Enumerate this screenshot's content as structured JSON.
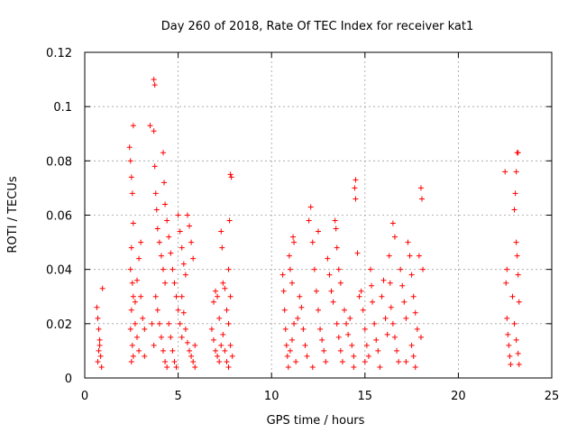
{
  "chart_data": {
    "type": "scatter",
    "title": "Day 260 of 2018, Rate Of TEC Index for receiver kat1",
    "xlabel": "GPS time / hours",
    "ylabel": "ROTI / TECUs",
    "xlim": [
      0,
      25
    ],
    "ylim": [
      0,
      0.12
    ],
    "xticks": [
      0,
      5,
      10,
      15,
      20,
      25
    ],
    "xtick_labels": [
      "0",
      "5",
      "10",
      "15",
      "20",
      "25"
    ],
    "yticks": [
      0,
      0.02,
      0.04,
      0.06,
      0.08,
      0.1,
      0.12
    ],
    "ytick_labels": [
      "0",
      "0.02",
      "0.04",
      "0.06",
      "0.08",
      "0.1",
      "0.12"
    ],
    "grid": true,
    "marker": "plus",
    "color": "#ff0000",
    "series": [
      {
        "name": "ROTI",
        "points": [
          [
            0.65,
            0.026
          ],
          [
            0.7,
            0.022
          ],
          [
            0.75,
            0.018
          ],
          [
            0.8,
            0.012
          ],
          [
            0.85,
            0.008
          ],
          [
            0.9,
            0.004
          ],
          [
            0.7,
            0.006
          ],
          [
            0.8,
            0.014
          ],
          [
            0.75,
            0.01
          ],
          [
            0.95,
            0.033
          ],
          [
            2.4,
            0.085
          ],
          [
            2.45,
            0.08
          ],
          [
            2.5,
            0.074
          ],
          [
            2.55,
            0.068
          ],
          [
            2.6,
            0.057
          ],
          [
            2.5,
            0.048
          ],
          [
            2.45,
            0.04
          ],
          [
            2.55,
            0.035
          ],
          [
            2.6,
            0.03
          ],
          [
            2.5,
            0.025
          ],
          [
            2.45,
            0.018
          ],
          [
            2.55,
            0.012
          ],
          [
            2.6,
            0.008
          ],
          [
            2.5,
            0.006
          ],
          [
            2.6,
            0.093
          ],
          [
            2.7,
            0.02
          ],
          [
            2.8,
            0.015
          ],
          [
            2.9,
            0.01
          ],
          [
            2.7,
            0.028
          ],
          [
            2.8,
            0.036
          ],
          [
            2.9,
            0.044
          ],
          [
            3.0,
            0.05
          ],
          [
            3.1,
            0.022
          ],
          [
            3.2,
            0.018
          ],
          [
            3.0,
            0.03
          ],
          [
            3.2,
            0.008
          ],
          [
            3.5,
            0.093
          ],
          [
            3.7,
            0.11
          ],
          [
            3.75,
            0.108
          ],
          [
            3.7,
            0.091
          ],
          [
            3.75,
            0.078
          ],
          [
            3.8,
            0.068
          ],
          [
            3.85,
            0.062
          ],
          [
            3.9,
            0.055
          ],
          [
            4.0,
            0.05
          ],
          [
            4.1,
            0.045
          ],
          [
            4.2,
            0.04
          ],
          [
            4.3,
            0.035
          ],
          [
            3.8,
            0.03
          ],
          [
            3.9,
            0.025
          ],
          [
            4.0,
            0.02
          ],
          [
            4.1,
            0.015
          ],
          [
            4.2,
            0.01
          ],
          [
            4.3,
            0.006
          ],
          [
            4.4,
            0.004
          ],
          [
            3.6,
            0.02
          ],
          [
            3.7,
            0.012
          ],
          [
            4.2,
            0.083
          ],
          [
            4.25,
            0.072
          ],
          [
            4.3,
            0.064
          ],
          [
            4.4,
            0.058
          ],
          [
            4.5,
            0.052
          ],
          [
            4.6,
            0.046
          ],
          [
            4.7,
            0.04
          ],
          [
            4.8,
            0.035
          ],
          [
            4.9,
            0.03
          ],
          [
            5.0,
            0.025
          ],
          [
            4.5,
            0.02
          ],
          [
            4.6,
            0.015
          ],
          [
            4.7,
            0.01
          ],
          [
            4.8,
            0.006
          ],
          [
            4.9,
            0.004
          ],
          [
            5.0,
            0.06
          ],
          [
            5.1,
            0.054
          ],
          [
            5.2,
            0.048
          ],
          [
            5.3,
            0.042
          ],
          [
            5.4,
            0.038
          ],
          [
            5.5,
            0.06
          ],
          [
            5.6,
            0.056
          ],
          [
            5.7,
            0.05
          ],
          [
            5.8,
            0.044
          ],
          [
            5.2,
            0.03
          ],
          [
            5.3,
            0.024
          ],
          [
            5.4,
            0.018
          ],
          [
            5.5,
            0.013
          ],
          [
            5.6,
            0.01
          ],
          [
            5.7,
            0.008
          ],
          [
            5.8,
            0.006
          ],
          [
            5.9,
            0.012
          ],
          [
            5.1,
            0.02
          ],
          [
            5.2,
            0.015
          ],
          [
            5.9,
            0.004
          ],
          [
            6.8,
            0.018
          ],
          [
            6.9,
            0.014
          ],
          [
            7.0,
            0.01
          ],
          [
            7.1,
            0.008
          ],
          [
            7.2,
            0.006
          ],
          [
            7.3,
            0.012
          ],
          [
            6.9,
            0.028
          ],
          [
            7.0,
            0.032
          ],
          [
            7.1,
            0.03
          ],
          [
            7.2,
            0.022
          ],
          [
            7.3,
            0.054
          ],
          [
            7.35,
            0.048
          ],
          [
            7.4,
            0.035
          ],
          [
            7.5,
            0.033
          ],
          [
            7.6,
            0.025
          ],
          [
            7.4,
            0.016
          ],
          [
            7.5,
            0.01
          ],
          [
            7.6,
            0.006
          ],
          [
            7.7,
            0.04
          ],
          [
            7.75,
            0.058
          ],
          [
            7.8,
            0.075
          ],
          [
            7.85,
            0.074
          ],
          [
            7.8,
            0.03
          ],
          [
            7.7,
            0.02
          ],
          [
            7.8,
            0.012
          ],
          [
            7.9,
            0.008
          ],
          [
            7.7,
            0.004
          ],
          [
            10.6,
            0.038
          ],
          [
            10.65,
            0.032
          ],
          [
            10.7,
            0.025
          ],
          [
            10.75,
            0.018
          ],
          [
            10.8,
            0.012
          ],
          [
            10.85,
            0.008
          ],
          [
            10.9,
            0.004
          ],
          [
            10.95,
            0.045
          ],
          [
            11.0,
            0.04
          ],
          [
            11.1,
            0.035
          ],
          [
            11.15,
            0.052
          ],
          [
            11.2,
            0.05
          ],
          [
            11.2,
            0.02
          ],
          [
            11.1,
            0.014
          ],
          [
            11.0,
            0.01
          ],
          [
            11.3,
            0.006
          ],
          [
            11.4,
            0.022
          ],
          [
            11.5,
            0.03
          ],
          [
            11.6,
            0.026
          ],
          [
            11.7,
            0.018
          ],
          [
            11.8,
            0.012
          ],
          [
            11.9,
            0.008
          ],
          [
            12.0,
            0.058
          ],
          [
            12.1,
            0.063
          ],
          [
            12.2,
            0.05
          ],
          [
            12.3,
            0.04
          ],
          [
            12.4,
            0.032
          ],
          [
            12.5,
            0.025
          ],
          [
            12.6,
            0.018
          ],
          [
            12.7,
            0.014
          ],
          [
            12.8,
            0.01
          ],
          [
            12.9,
            0.006
          ],
          [
            12.2,
            0.004
          ],
          [
            12.5,
            0.054
          ],
          [
            13.0,
            0.044
          ],
          [
            13.1,
            0.038
          ],
          [
            13.2,
            0.032
          ],
          [
            13.3,
            0.028
          ],
          [
            13.4,
            0.058
          ],
          [
            13.45,
            0.055
          ],
          [
            13.5,
            0.048
          ],
          [
            13.6,
            0.04
          ],
          [
            13.7,
            0.035
          ],
          [
            13.5,
            0.02
          ],
          [
            13.6,
            0.015
          ],
          [
            13.7,
            0.01
          ],
          [
            13.8,
            0.006
          ],
          [
            13.9,
            0.025
          ],
          [
            14.0,
            0.02
          ],
          [
            14.1,
            0.016
          ],
          [
            14.2,
            0.022
          ],
          [
            14.3,
            0.012
          ],
          [
            14.4,
            0.008
          ],
          [
            14.5,
            0.073
          ],
          [
            14.5,
            0.066
          ],
          [
            14.45,
            0.07
          ],
          [
            14.6,
            0.046
          ],
          [
            14.7,
            0.03
          ],
          [
            14.4,
            0.004
          ],
          [
            14.8,
            0.032
          ],
          [
            14.9,
            0.025
          ],
          [
            15.0,
            0.018
          ],
          [
            15.1,
            0.012
          ],
          [
            15.2,
            0.008
          ],
          [
            15.3,
            0.04
          ],
          [
            15.35,
            0.034
          ],
          [
            15.4,
            0.028
          ],
          [
            15.5,
            0.02
          ],
          [
            15.6,
            0.014
          ],
          [
            15.7,
            0.01
          ],
          [
            15.8,
            0.004
          ],
          [
            15.9,
            0.03
          ],
          [
            16.0,
            0.036
          ],
          [
            16.1,
            0.022
          ],
          [
            16.2,
            0.016
          ],
          [
            15.0,
            0.006
          ],
          [
            16.3,
            0.045
          ],
          [
            16.35,
            0.035
          ],
          [
            16.4,
            0.026
          ],
          [
            16.5,
            0.02
          ],
          [
            16.6,
            0.015
          ],
          [
            16.7,
            0.01
          ],
          [
            16.8,
            0.006
          ],
          [
            16.5,
            0.057
          ],
          [
            16.6,
            0.052
          ],
          [
            16.9,
            0.04
          ],
          [
            17.0,
            0.034
          ],
          [
            17.1,
            0.028
          ],
          [
            17.2,
            0.022
          ],
          [
            17.3,
            0.05
          ],
          [
            17.4,
            0.045
          ],
          [
            17.5,
            0.038
          ],
          [
            17.6,
            0.03
          ],
          [
            17.7,
            0.024
          ],
          [
            17.8,
            0.018
          ],
          [
            17.9,
            0.045
          ],
          [
            18.0,
            0.07
          ],
          [
            18.05,
            0.066
          ],
          [
            18.1,
            0.04
          ],
          [
            17.5,
            0.012
          ],
          [
            17.6,
            0.008
          ],
          [
            17.7,
            0.004
          ],
          [
            18.0,
            0.015
          ],
          [
            17.2,
            0.006
          ],
          [
            22.5,
            0.076
          ],
          [
            22.6,
            0.04
          ],
          [
            22.55,
            0.035
          ],
          [
            22.6,
            0.022
          ],
          [
            22.65,
            0.016
          ],
          [
            22.7,
            0.012
          ],
          [
            22.75,
            0.008
          ],
          [
            22.8,
            0.005
          ],
          [
            22.9,
            0.03
          ],
          [
            23.0,
            0.062
          ],
          [
            23.05,
            0.068
          ],
          [
            23.1,
            0.076
          ],
          [
            23.15,
            0.083
          ],
          [
            23.2,
            0.083
          ],
          [
            23.1,
            0.05
          ],
          [
            23.15,
            0.045
          ],
          [
            23.2,
            0.038
          ],
          [
            23.25,
            0.028
          ],
          [
            23.0,
            0.02
          ],
          [
            23.1,
            0.014
          ],
          [
            23.2,
            0.009
          ],
          [
            23.25,
            0.005
          ]
        ]
      }
    ]
  }
}
